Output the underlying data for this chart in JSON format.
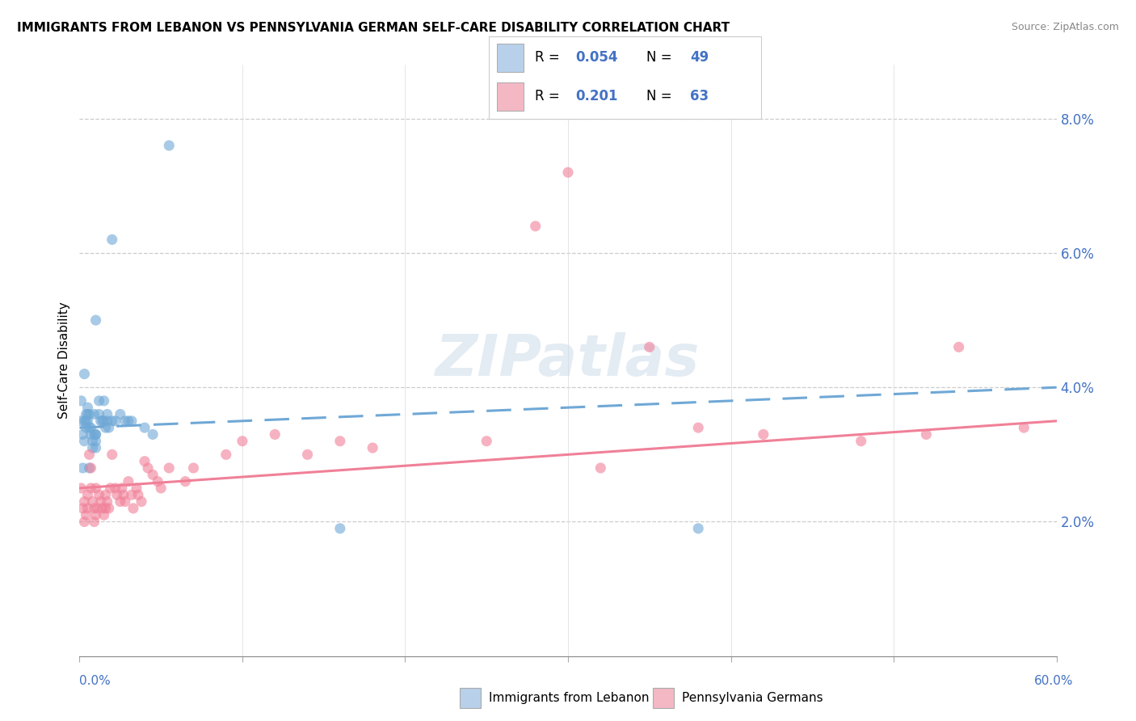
{
  "title": "IMMIGRANTS FROM LEBANON VS PENNSYLVANIA GERMAN SELF-CARE DISABILITY CORRELATION CHART",
  "source": "Source: ZipAtlas.com",
  "ylabel": "Self-Care Disability",
  "right_ytick_vals": [
    0.02,
    0.04,
    0.06,
    0.08
  ],
  "right_ytick_labels": [
    "2.0%",
    "4.0%",
    "6.0%",
    "8.0%"
  ],
  "xlim": [
    0,
    0.6
  ],
  "ylim": [
    0,
    0.088
  ],
  "blue_color": "#6fa8d6",
  "pink_color": "#f08098",
  "blue_fill": "#b8d0ea",
  "pink_fill": "#f4b8c4",
  "watermark": "ZIPatlas",
  "legend_label_blue": "Immigrants from Lebanon",
  "legend_label_pink": "Pennsylvania Germans",
  "r_blue_str": "0.054",
  "n_blue_str": "49",
  "r_pink_str": "0.201",
  "n_pink_str": "63",
  "blue_x": [
    0.001,
    0.001,
    0.002,
    0.002,
    0.003,
    0.003,
    0.003,
    0.004,
    0.004,
    0.004,
    0.005,
    0.005,
    0.005,
    0.006,
    0.006,
    0.006,
    0.007,
    0.007,
    0.008,
    0.008,
    0.009,
    0.009,
    0.01,
    0.01,
    0.01,
    0.01,
    0.012,
    0.012,
    0.013,
    0.014,
    0.015,
    0.015,
    0.016,
    0.017,
    0.017,
    0.018,
    0.02,
    0.022,
    0.025,
    0.028,
    0.03,
    0.032,
    0.04,
    0.045,
    0.16,
    0.02,
    0.055,
    0.38,
    0.01
  ],
  "blue_y": [
    0.038,
    0.035,
    0.033,
    0.028,
    0.035,
    0.032,
    0.042,
    0.036,
    0.035,
    0.034,
    0.037,
    0.036,
    0.035,
    0.036,
    0.034,
    0.028,
    0.034,
    0.033,
    0.032,
    0.031,
    0.036,
    0.033,
    0.033,
    0.033,
    0.032,
    0.031,
    0.038,
    0.036,
    0.035,
    0.035,
    0.038,
    0.035,
    0.034,
    0.036,
    0.035,
    0.034,
    0.035,
    0.035,
    0.036,
    0.035,
    0.035,
    0.035,
    0.034,
    0.033,
    0.019,
    0.062,
    0.076,
    0.019,
    0.05
  ],
  "pink_x": [
    0.001,
    0.002,
    0.003,
    0.003,
    0.004,
    0.005,
    0.005,
    0.006,
    0.007,
    0.007,
    0.008,
    0.009,
    0.009,
    0.01,
    0.01,
    0.011,
    0.012,
    0.013,
    0.014,
    0.015,
    0.016,
    0.016,
    0.017,
    0.018,
    0.019,
    0.02,
    0.022,
    0.023,
    0.025,
    0.026,
    0.027,
    0.028,
    0.03,
    0.032,
    0.033,
    0.035,
    0.036,
    0.038,
    0.04,
    0.042,
    0.045,
    0.048,
    0.05,
    0.055,
    0.065,
    0.07,
    0.09,
    0.1,
    0.12,
    0.14,
    0.16,
    0.18,
    0.25,
    0.32,
    0.38,
    0.42,
    0.48,
    0.52,
    0.58,
    0.35,
    0.3,
    0.54,
    0.28
  ],
  "pink_y": [
    0.025,
    0.022,
    0.023,
    0.02,
    0.021,
    0.024,
    0.022,
    0.03,
    0.028,
    0.025,
    0.023,
    0.022,
    0.02,
    0.021,
    0.025,
    0.022,
    0.024,
    0.023,
    0.022,
    0.021,
    0.024,
    0.022,
    0.023,
    0.022,
    0.025,
    0.03,
    0.025,
    0.024,
    0.023,
    0.025,
    0.024,
    0.023,
    0.026,
    0.024,
    0.022,
    0.025,
    0.024,
    0.023,
    0.029,
    0.028,
    0.027,
    0.026,
    0.025,
    0.028,
    0.026,
    0.028,
    0.03,
    0.032,
    0.033,
    0.03,
    0.032,
    0.031,
    0.032,
    0.028,
    0.034,
    0.033,
    0.032,
    0.033,
    0.034,
    0.046,
    0.072,
    0.046,
    0.064
  ],
  "blue_trend_x": [
    0.0,
    0.6
  ],
  "blue_trend_y": [
    0.034,
    0.04
  ],
  "pink_trend_x": [
    0.0,
    0.6
  ],
  "pink_trend_y": [
    0.025,
    0.035
  ]
}
